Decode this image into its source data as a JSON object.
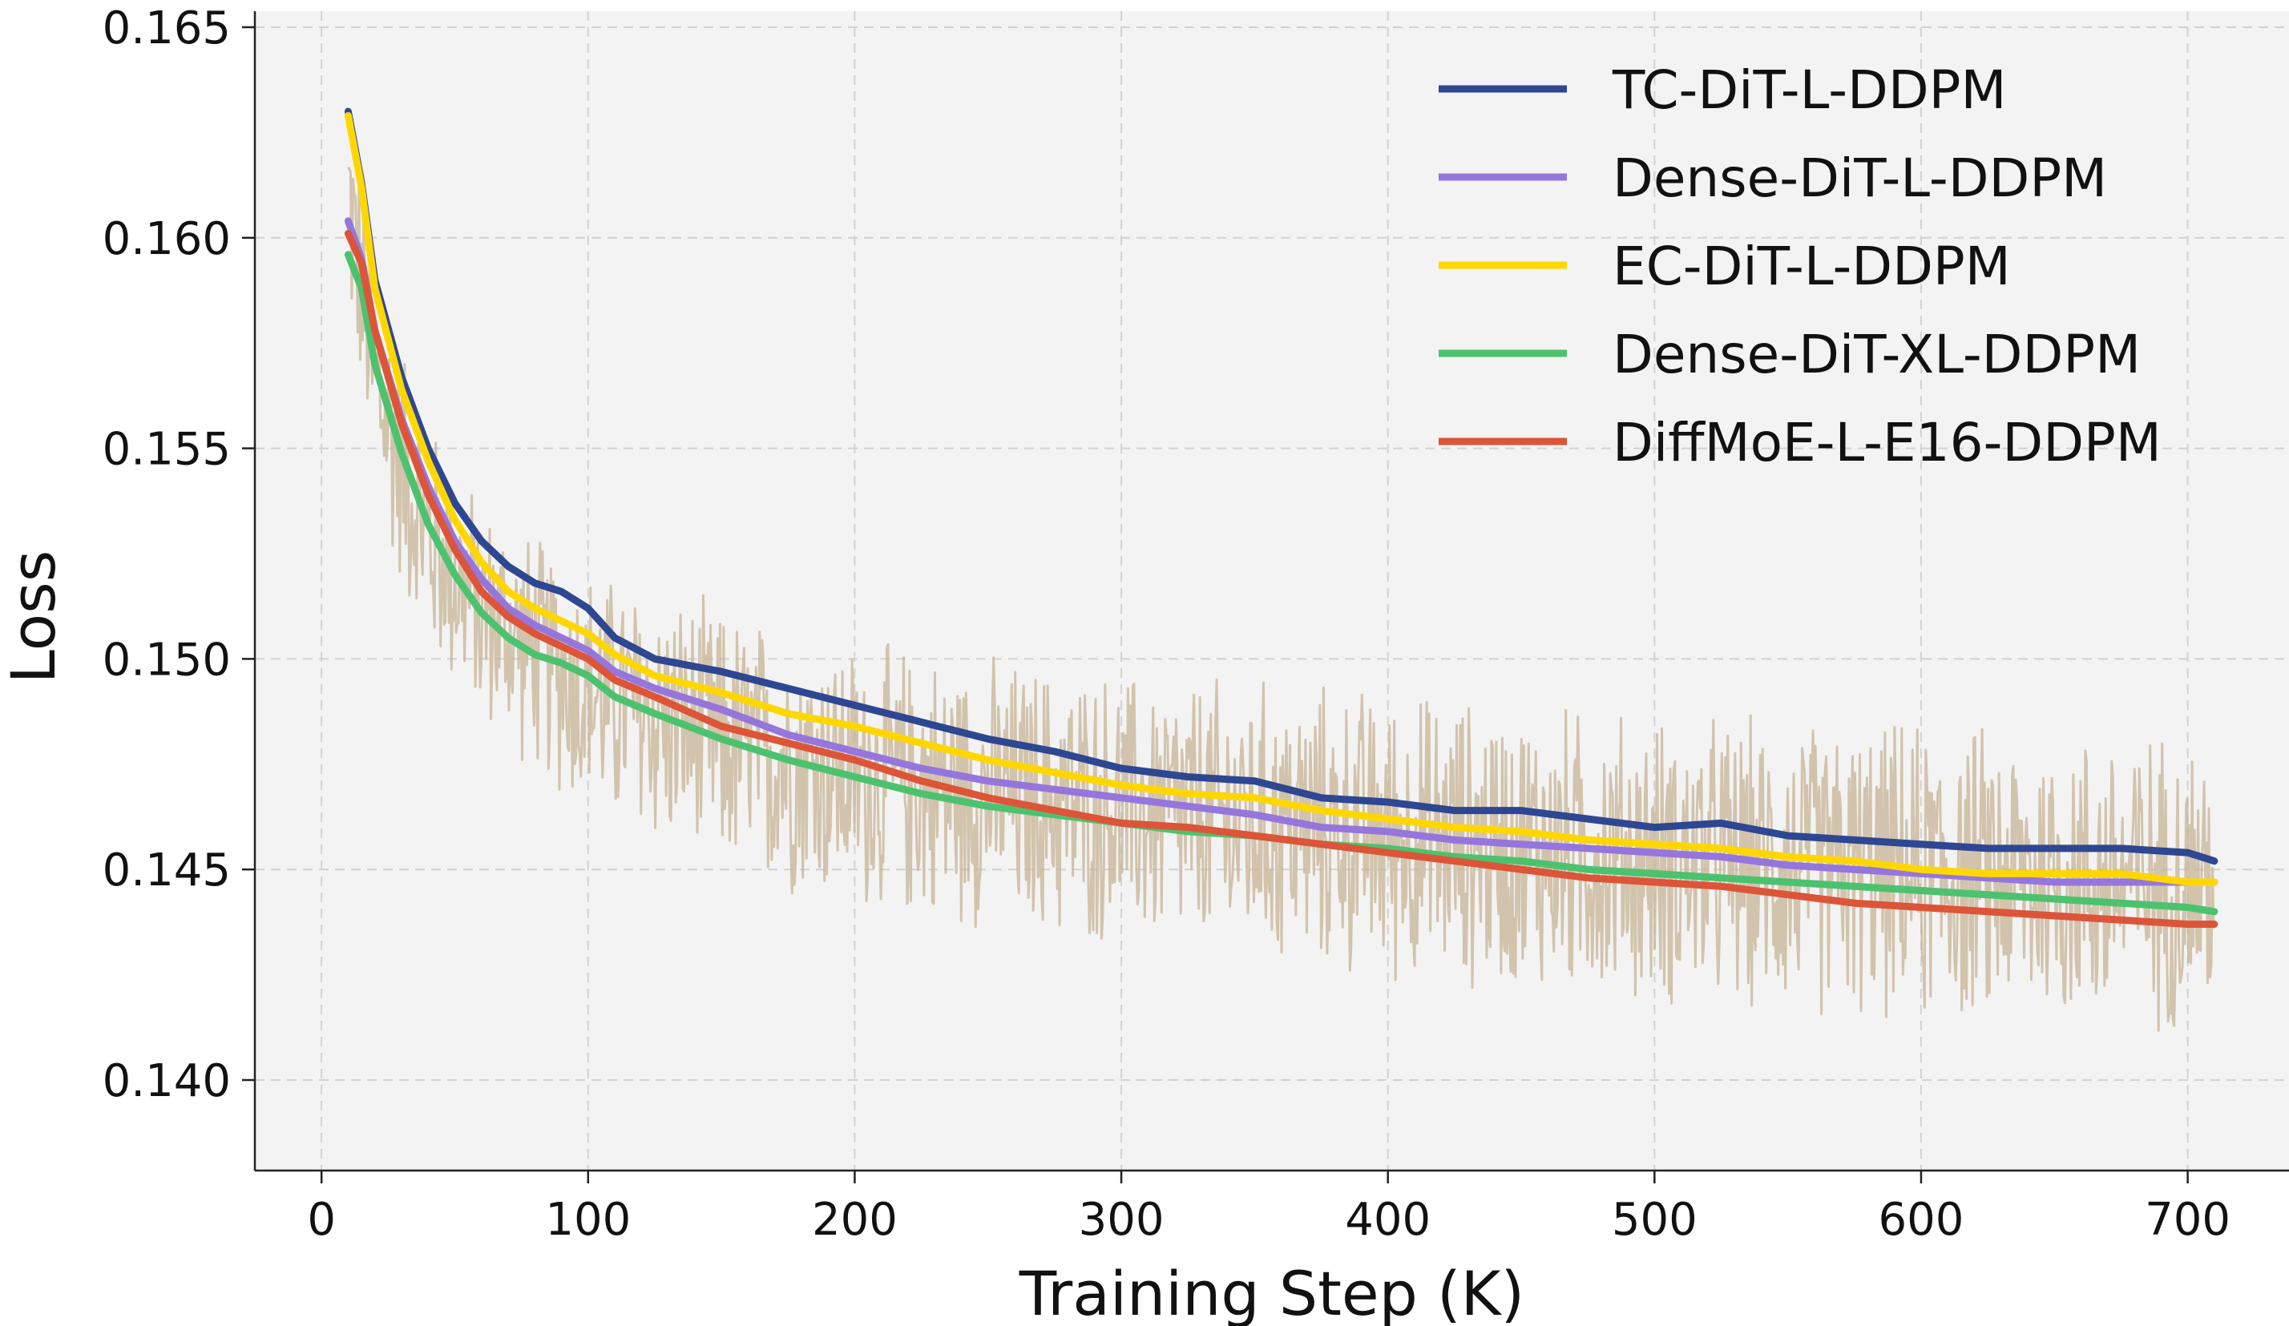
{
  "chart_data": {
    "type": "line",
    "title": "",
    "xlabel": "Training Step (K)",
    "ylabel": "Loss",
    "xlim": [
      -25,
      738
    ],
    "ylim": [
      0.13785,
      0.16538
    ],
    "xticks": [
      0,
      100,
      200,
      300,
      400,
      500,
      600,
      700
    ],
    "xtick_labels": [
      "0",
      "100",
      "200",
      "300",
      "400",
      "500",
      "600",
      "700"
    ],
    "yticks": [
      0.14,
      0.145,
      0.15,
      0.155,
      0.16,
      0.165
    ],
    "ytick_labels": [
      "0.140",
      "0.145",
      "0.150",
      "0.155",
      "0.160",
      "0.165"
    ],
    "grid": true,
    "background": "#f3f3f3",
    "legend_position": "top-right",
    "raw_band_color": "#c7b394",
    "raw_band_low": [
      [
        10,
        0.1581
      ],
      [
        20,
        0.153
      ],
      [
        40,
        0.1497
      ],
      [
        60,
        0.1482
      ],
      [
        100,
        0.1459
      ],
      [
        150,
        0.1445
      ],
      [
        200,
        0.1437
      ],
      [
        300,
        0.1428
      ],
      [
        400,
        0.142
      ],
      [
        500,
        0.1414
      ],
      [
        600,
        0.141
      ],
      [
        710,
        0.1408
      ]
    ],
    "raw_band_high": [
      [
        10,
        0.164
      ],
      [
        20,
        0.16
      ],
      [
        40,
        0.156
      ],
      [
        60,
        0.154
      ],
      [
        100,
        0.1525
      ],
      [
        150,
        0.1515
      ],
      [
        200,
        0.1507
      ],
      [
        300,
        0.15
      ],
      [
        400,
        0.1496
      ],
      [
        500,
        0.149
      ],
      [
        600,
        0.1488
      ],
      [
        710,
        0.1486
      ]
    ],
    "series": [
      {
        "name": "TC-DiT-L-DDPM",
        "color": "#2e4793",
        "x": [
          10,
          15,
          20,
          30,
          40,
          50,
          60,
          70,
          80,
          90,
          100,
          110,
          125,
          150,
          175,
          200,
          225,
          250,
          275,
          300,
          325,
          350,
          375,
          400,
          425,
          450,
          475,
          500,
          525,
          550,
          575,
          600,
          625,
          650,
          675,
          700,
          710
        ],
        "values": [
          0.163,
          0.1613,
          0.159,
          0.1567,
          0.155,
          0.1537,
          0.1528,
          0.1522,
          0.1518,
          0.1516,
          0.1512,
          0.1505,
          0.15,
          0.1497,
          0.1493,
          0.1489,
          0.1485,
          0.1481,
          0.1478,
          0.1474,
          0.1472,
          0.1471,
          0.1467,
          0.1466,
          0.1464,
          0.1464,
          0.1462,
          0.146,
          0.1461,
          0.1458,
          0.1457,
          0.1456,
          0.1455,
          0.1455,
          0.1455,
          0.1454,
          0.1452
        ]
      },
      {
        "name": "Dense-DiT-L-DDPM",
        "color": "#9576dd",
        "x": [
          10,
          15,
          20,
          30,
          40,
          50,
          60,
          70,
          80,
          90,
          100,
          110,
          125,
          150,
          175,
          200,
          225,
          250,
          275,
          300,
          325,
          350,
          375,
          400,
          425,
          450,
          475,
          500,
          525,
          550,
          575,
          600,
          625,
          650,
          675,
          700,
          710
        ],
        "values": [
          0.1604,
          0.1595,
          0.1578,
          0.1557,
          0.1541,
          0.1528,
          0.1519,
          0.1512,
          0.1508,
          0.1505,
          0.1502,
          0.1497,
          0.1493,
          0.1488,
          0.1482,
          0.1478,
          0.1474,
          0.1471,
          0.1469,
          0.1467,
          0.1465,
          0.1463,
          0.146,
          0.1459,
          0.1457,
          0.1456,
          0.1455,
          0.1454,
          0.1453,
          0.1451,
          0.145,
          0.1449,
          0.1448,
          0.1447,
          0.1447,
          0.1447,
          0.1447
        ]
      },
      {
        "name": "EC-DiT-L-DDPM",
        "color": "#ffd700",
        "x": [
          10,
          15,
          20,
          30,
          40,
          50,
          60,
          70,
          80,
          90,
          100,
          110,
          125,
          150,
          175,
          200,
          225,
          250,
          275,
          300,
          325,
          350,
          375,
          400,
          425,
          450,
          475,
          500,
          525,
          550,
          575,
          600,
          625,
          650,
          675,
          700,
          710
        ],
        "values": [
          0.1629,
          0.1612,
          0.1588,
          0.1564,
          0.1547,
          0.1533,
          0.1523,
          0.1516,
          0.1512,
          0.1509,
          0.1506,
          0.1501,
          0.1496,
          0.1492,
          0.1487,
          0.1484,
          0.148,
          0.1476,
          0.1473,
          0.147,
          0.1468,
          0.1467,
          0.1464,
          0.1462,
          0.146,
          0.1459,
          0.1457,
          0.1456,
          0.1455,
          0.1453,
          0.1452,
          0.145,
          0.1449,
          0.1449,
          0.1449,
          0.1447,
          0.1447
        ]
      },
      {
        "name": "Dense-DiT-XL-DDPM",
        "color": "#4dc26e",
        "x": [
          10,
          15,
          20,
          30,
          40,
          50,
          60,
          70,
          80,
          90,
          100,
          110,
          125,
          150,
          175,
          200,
          225,
          250,
          275,
          300,
          325,
          350,
          375,
          400,
          425,
          450,
          475,
          500,
          525,
          550,
          575,
          600,
          625,
          650,
          675,
          700,
          710
        ],
        "values": [
          0.1596,
          0.1588,
          0.157,
          0.1549,
          0.1532,
          0.152,
          0.1511,
          0.1505,
          0.1501,
          0.1499,
          0.1496,
          0.1491,
          0.1487,
          0.1481,
          0.1476,
          0.1472,
          0.1468,
          0.1465,
          0.1463,
          0.1461,
          0.1459,
          0.1458,
          0.1456,
          0.1455,
          0.1453,
          0.1452,
          0.145,
          0.1449,
          0.1448,
          0.1447,
          0.1446,
          0.1445,
          0.1444,
          0.1443,
          0.1442,
          0.1441,
          0.144
        ]
      },
      {
        "name": "DiffMoE-L-E16-DDPM",
        "color": "#dc5538",
        "x": [
          10,
          15,
          20,
          30,
          40,
          50,
          60,
          70,
          80,
          90,
          100,
          110,
          125,
          150,
          175,
          200,
          225,
          250,
          275,
          300,
          325,
          350,
          375,
          400,
          425,
          450,
          475,
          500,
          525,
          550,
          575,
          600,
          625,
          650,
          675,
          700,
          710
        ],
        "values": [
          0.1601,
          0.1594,
          0.1578,
          0.1556,
          0.1539,
          0.1526,
          0.1516,
          0.151,
          0.1506,
          0.1503,
          0.15,
          0.1495,
          0.1491,
          0.1484,
          0.148,
          0.1476,
          0.1471,
          0.1467,
          0.1464,
          0.1461,
          0.146,
          0.1458,
          0.1456,
          0.1454,
          0.1452,
          0.145,
          0.1448,
          0.1447,
          0.1446,
          0.1444,
          0.1442,
          0.1441,
          0.144,
          0.1439,
          0.1438,
          0.1437,
          0.1437
        ]
      }
    ]
  }
}
